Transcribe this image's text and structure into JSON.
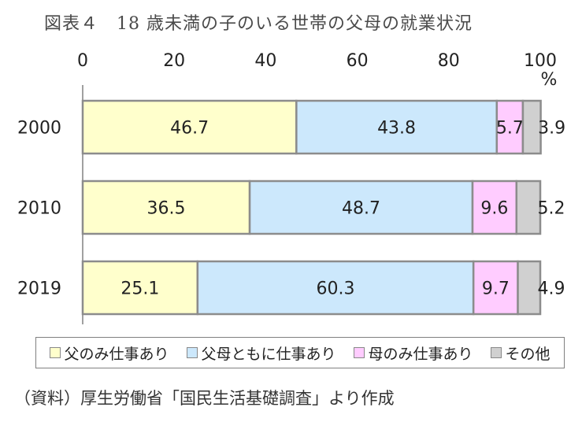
{
  "title": "図表４　18 歳未満の子のいる世帯の父母の就業状況",
  "source": "（資料）厚生労働省「国民生活基礎調査」より作成",
  "chart_data": {
    "type": "bar",
    "orientation": "horizontal",
    "stacked": true,
    "categories": [
      "2000",
      "2010",
      "2019"
    ],
    "series": [
      {
        "name": "父のみ仕事あり",
        "color": "#ffffcc",
        "values": [
          46.7,
          36.5,
          25.1
        ]
      },
      {
        "name": "父母ともに仕事あり",
        "color": "#cce8fc",
        "values": [
          43.8,
          48.7,
          60.3
        ]
      },
      {
        "name": "母のみ仕事あり",
        "color": "#ffccff",
        "values": [
          5.7,
          9.6,
          9.7
        ]
      },
      {
        "name": "その他",
        "color": "#d0d0d0",
        "values": [
          3.9,
          5.2,
          4.9
        ]
      }
    ],
    "xticks": [
      "0",
      "20",
      "40",
      "60",
      "80",
      "100"
    ],
    "xlim": [
      0,
      100
    ],
    "xunit": "%",
    "grid": false,
    "legend_position": "bottom"
  }
}
